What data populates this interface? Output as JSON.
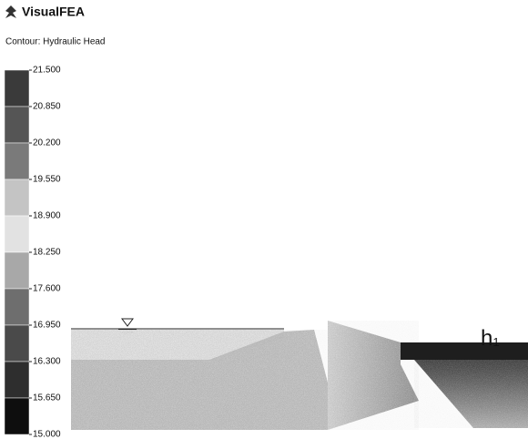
{
  "header": {
    "title": "VisualFEA",
    "subtitle": "Contour: Hydraulic Head"
  },
  "legend": {
    "levels": [
      {
        "value": 21.5,
        "label": "21.500"
      },
      {
        "value": 20.85,
        "label": "20.850"
      },
      {
        "value": 20.2,
        "label": "20.200"
      },
      {
        "value": 19.55,
        "label": "19.550"
      },
      {
        "value": 18.9,
        "label": "18.900"
      },
      {
        "value": 18.25,
        "label": "18.250"
      },
      {
        "value": 17.6,
        "label": "17.600"
      },
      {
        "value": 16.95,
        "label": "16.950"
      },
      {
        "value": 16.3,
        "label": "16.300"
      },
      {
        "value": 15.65,
        "label": "15.650"
      },
      {
        "value": 15,
        "label": "15.000"
      }
    ],
    "colors": [
      "#3a3a3a",
      "#555555",
      "#7a7a7a",
      "#c4c4c4",
      "#e2e2e2",
      "#a8a8a8",
      "#6e6e6e",
      "#4a4a4a",
      "#2e2e2e",
      "#0e0e0e"
    ]
  },
  "annotation": {
    "text": "h",
    "subscript": "1"
  }
}
